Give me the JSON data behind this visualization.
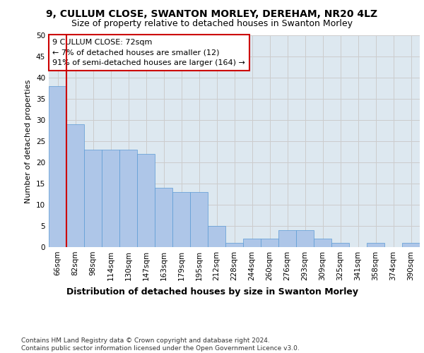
{
  "title1": "9, CULLUM CLOSE, SWANTON MORLEY, DEREHAM, NR20 4LZ",
  "title2": "Size of property relative to detached houses in Swanton Morley",
  "xlabel": "Distribution of detached houses by size in Swanton Morley",
  "ylabel": "Number of detached properties",
  "categories": [
    "66sqm",
    "82sqm",
    "98sqm",
    "114sqm",
    "130sqm",
    "147sqm",
    "163sqm",
    "179sqm",
    "195sqm",
    "212sqm",
    "228sqm",
    "244sqm",
    "260sqm",
    "276sqm",
    "293sqm",
    "309sqm",
    "325sqm",
    "341sqm",
    "358sqm",
    "374sqm",
    "390sqm"
  ],
  "values": [
    38,
    29,
    23,
    23,
    23,
    22,
    14,
    13,
    13,
    5,
    1,
    2,
    2,
    4,
    4,
    2,
    1,
    0,
    1,
    0,
    1
  ],
  "bar_color": "#aec6e8",
  "bar_edge_color": "#5b9bd5",
  "annotation_box_text": "9 CULLUM CLOSE: 72sqm\n← 7% of detached houses are smaller (12)\n91% of semi-detached houses are larger (164) →",
  "annotation_box_color": "#ffffff",
  "annotation_box_edge_color": "#cc0000",
  "vline_color": "#cc0000",
  "vline_x": 0.5,
  "ylim": [
    0,
    50
  ],
  "yticks": [
    0,
    5,
    10,
    15,
    20,
    25,
    30,
    35,
    40,
    45,
    50
  ],
  "grid_color": "#cccccc",
  "bg_color": "#dde8f0",
  "footnote": "Contains HM Land Registry data © Crown copyright and database right 2024.\nContains public sector information licensed under the Open Government Licence v3.0.",
  "title1_fontsize": 10,
  "title2_fontsize": 9,
  "xlabel_fontsize": 9,
  "ylabel_fontsize": 8,
  "tick_fontsize": 7.5,
  "annot_fontsize": 8,
  "footnote_fontsize": 6.5
}
